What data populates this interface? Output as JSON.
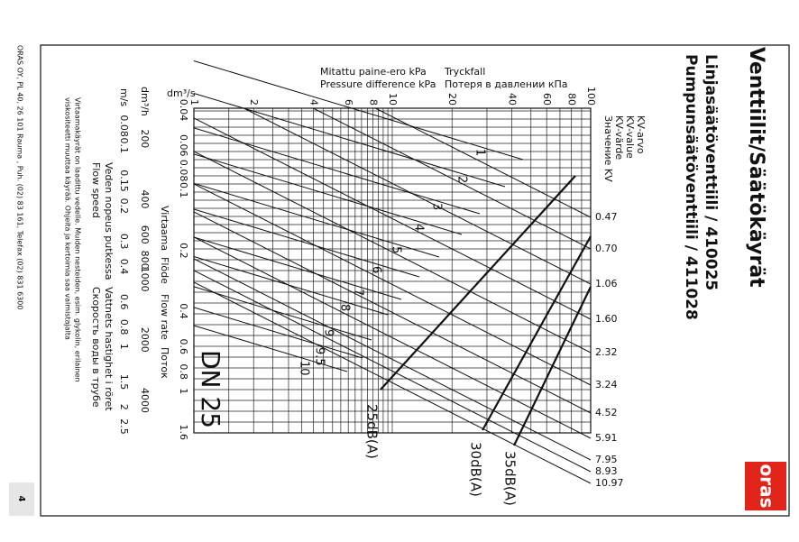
{
  "header": {
    "title": "Venttiilit/Säätökäyrät",
    "line_1": "Linjasäätöventtiili / 410025",
    "line_2": "Pumpunsäätöventtiili / 411028"
  },
  "pressure_axis": {
    "label_fi": "Mitattu paine-ero kPa",
    "label_en": "Pressure difference kPa",
    "label_sv": "Tryckfall",
    "label_ru": "Потеря в давлении кПа",
    "ticks": [
      "1",
      "2",
      "4",
      "6",
      "8",
      "10",
      "20",
      "40",
      "60",
      "80",
      "100"
    ]
  },
  "flow_axis": {
    "unit": "dm³/s",
    "label_fi": "Virtaama",
    "label_sv": "Flöde",
    "label_en": "Flow rate",
    "label_ru": "Поток",
    "ticks": [
      "0.04",
      "0.06",
      "0.08",
      "0.1",
      "0.2",
      "0.4",
      "0.6",
      "0.8",
      "1",
      "1.6"
    ]
  },
  "flow_h_axis": {
    "unit": "dm³/h",
    "ticks": [
      "200",
      "400",
      "600",
      "800",
      "1000",
      "2000",
      "4000"
    ]
  },
  "speed_axis": {
    "unit": "m/s",
    "label_fi": "Veden nopeus putkessa",
    "label_en": "Flow speed",
    "label_sv": "Vattnets hastighet i röret",
    "label_ru": "Скорость воды в трубе",
    "ticks": [
      "0.08",
      "0.1",
      "0.15",
      "0.2",
      "0.3",
      "0.4",
      "0.6",
      "0.8",
      "1",
      "1.5",
      "2",
      "2.5"
    ]
  },
  "kv": {
    "labels": [
      "KV-arvo",
      "KV-value",
      "KV-värde",
      "Значение KV"
    ],
    "values": [
      "0.47",
      "0.70",
      "1.06",
      "1.60",
      "2.32",
      "3.24",
      "4.52",
      "5.91",
      "7.95",
      "8.93",
      "10.97"
    ]
  },
  "settings": [
    "1",
    "2",
    "3",
    "4",
    "5",
    "6",
    "7",
    "8",
    "9",
    "9.5",
    "10"
  ],
  "noise": [
    "25dB(A)",
    "30dB(A)",
    "35dB(A)"
  ],
  "size": "DN 25",
  "note": [
    "Virtaamakäyrät on laadittu vedelle. Muiden nesteiden, esim. glykolin, erilainen",
    "viskositeetti muuttaa käyrää. Ohjeita ja kertoimia saa valmistajalta"
  ],
  "footer": "ORAS OY, PL 40, 26 101 Rauma , Puh. (02) 83 161, Telefax (02) 831 6300",
  "page_number": "4",
  "logo": "oras"
}
